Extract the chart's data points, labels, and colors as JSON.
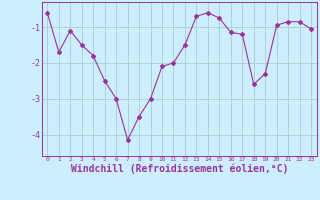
{
  "x": [
    0,
    1,
    2,
    3,
    4,
    5,
    6,
    7,
    8,
    9,
    10,
    11,
    12,
    13,
    14,
    15,
    16,
    17,
    18,
    19,
    20,
    21,
    22,
    23
  ],
  "y": [
    -0.6,
    -1.7,
    -1.1,
    -1.5,
    -1.8,
    -2.5,
    -3.0,
    -4.15,
    -3.5,
    -3.0,
    -2.1,
    -2.0,
    -1.5,
    -0.7,
    -0.6,
    -0.75,
    -1.15,
    -1.2,
    -2.6,
    -2.3,
    -0.95,
    -0.85,
    -0.85,
    -1.05
  ],
  "line_color": "#993399",
  "marker": "D",
  "marker_size": 2,
  "bg_color": "#cceeff",
  "grid_color": "#aacccc",
  "axis_color": "#993399",
  "xlabel": "Windchill (Refroidissement éolien,°C)",
  "xlabel_fontsize": 7,
  "yticks": [
    -4,
    -3,
    -2,
    -1
  ],
  "xticks": [
    0,
    1,
    2,
    3,
    4,
    5,
    6,
    7,
    8,
    9,
    10,
    11,
    12,
    13,
    14,
    15,
    16,
    17,
    18,
    19,
    20,
    21,
    22,
    23
  ],
  "ylim": [
    -4.6,
    -0.3
  ],
  "xlim": [
    -0.5,
    23.5
  ]
}
